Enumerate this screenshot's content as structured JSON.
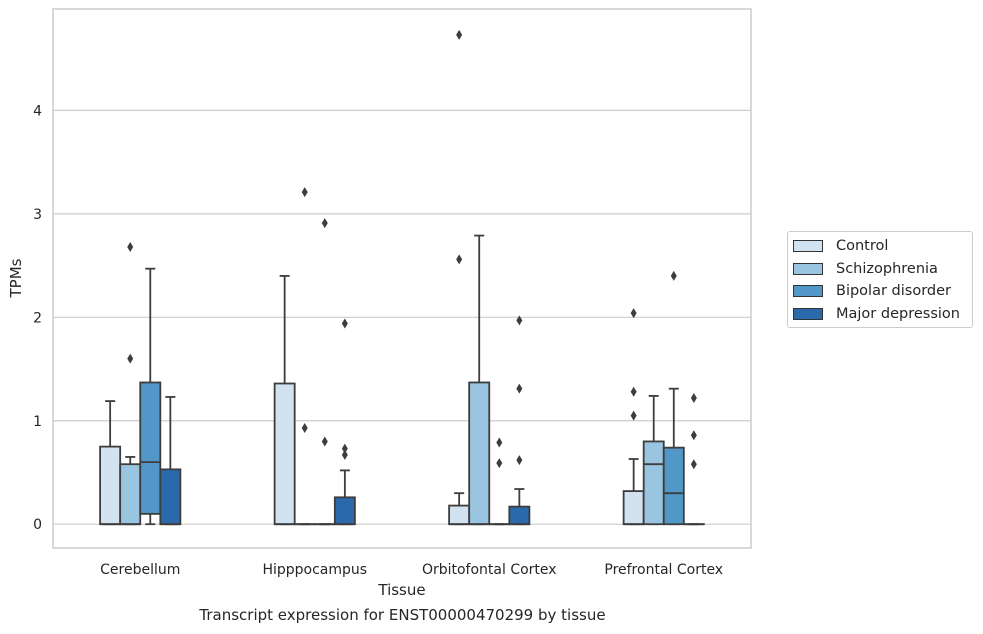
{
  "chart_data": {
    "type": "box",
    "xlabel": "Tissue",
    "ylabel": "TPMs",
    "caption": "Transcript expression for ENST00000470299 by tissue",
    "ylim": [
      -0.23,
      4.98
    ],
    "yticks": [
      0,
      1,
      2,
      3,
      4
    ],
    "categories": [
      "Cerebellum",
      "Hipppocampus",
      "Orbitofontal Cortex",
      "Prefrontal Cortex"
    ],
    "grid": "horizontal",
    "legend_position": "right",
    "series": [
      {
        "name": "Control",
        "color": "#d2e2f1",
        "boxes": [
          {
            "q1": 0,
            "median": 0,
            "q3": 0.75,
            "whislo": 0,
            "whishi": 1.19,
            "fliers": []
          },
          {
            "q1": 0,
            "median": 0,
            "q3": 1.36,
            "whislo": 0,
            "whishi": 2.4,
            "fliers": []
          },
          {
            "q1": 0,
            "median": 0,
            "q3": 0.18,
            "whislo": 0,
            "whishi": 0.3,
            "fliers": [
              2.56,
              4.73
            ]
          },
          {
            "q1": 0,
            "median": 0,
            "q3": 0.32,
            "whislo": 0,
            "whishi": 0.63,
            "fliers": [
              1.05,
              1.28,
              2.04
            ]
          }
        ]
      },
      {
        "name": "Schizophrenia",
        "color": "#9ac5e0",
        "boxes": [
          {
            "q1": 0,
            "median": 0,
            "q3": 0.58,
            "whislo": 0,
            "whishi": 0.65,
            "fliers": [
              1.6,
              2.68
            ]
          },
          {
            "q1": 0,
            "median": 0,
            "q3": 0,
            "whislo": 0,
            "whishi": 0,
            "fliers": [
              0.93,
              3.21
            ]
          },
          {
            "q1": 0,
            "median": 0,
            "q3": 1.37,
            "whislo": 0,
            "whishi": 2.79,
            "fliers": []
          },
          {
            "q1": 0,
            "median": 0.58,
            "q3": 0.8,
            "whislo": 0,
            "whishi": 1.24,
            "fliers": []
          }
        ]
      },
      {
        "name": "Bipolar disorder",
        "color": "#5197c8",
        "boxes": [
          {
            "q1": 0.1,
            "median": 0.6,
            "q3": 1.37,
            "whislo": 0,
            "whishi": 2.47,
            "fliers": []
          },
          {
            "q1": 0,
            "median": 0,
            "q3": 0,
            "whislo": 0,
            "whishi": 0,
            "fliers": [
              0.8,
              2.91
            ]
          },
          {
            "q1": 0,
            "median": 0,
            "q3": 0,
            "whislo": 0,
            "whishi": 0,
            "fliers": [
              0.59,
              0.79
            ]
          },
          {
            "q1": 0,
            "median": 0.3,
            "q3": 0.74,
            "whislo": 0,
            "whishi": 1.31,
            "fliers": [
              2.4
            ]
          }
        ]
      },
      {
        "name": "Major depression",
        "color": "#2a6aab",
        "boxes": [
          {
            "q1": 0,
            "median": 0,
            "q3": 0.53,
            "whislo": 0,
            "whishi": 1.23,
            "fliers": []
          },
          {
            "q1": 0,
            "median": 0,
            "q3": 0.26,
            "whislo": 0,
            "whishi": 0.52,
            "fliers": [
              0.67,
              0.73,
              1.94
            ]
          },
          {
            "q1": 0,
            "median": 0,
            "q3": 0.17,
            "whislo": 0,
            "whishi": 0.34,
            "fliers": [
              0.62,
              1.31,
              1.97
            ]
          },
          {
            "q1": 0,
            "median": 0,
            "q3": 0,
            "whislo": 0,
            "whishi": 0,
            "fliers": [
              0.58,
              0.86,
              1.22
            ]
          }
        ]
      }
    ]
  }
}
